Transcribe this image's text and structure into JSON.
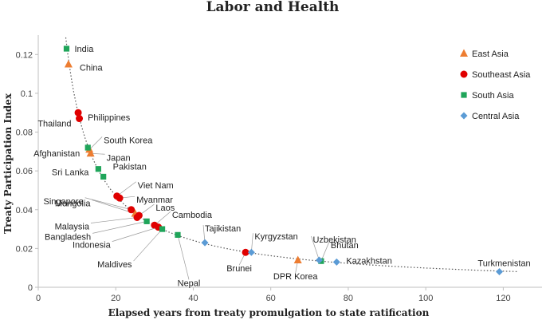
{
  "chart_data": {
    "type": "scatter",
    "title": "Labor and Health",
    "xlabel": "Elapsed years from treaty promulgation to state ratification",
    "ylabel": "Treaty Participation Index",
    "xlim": [
      0,
      130
    ],
    "ylim": [
      0,
      0.13
    ],
    "x_ticks": [
      0,
      20,
      40,
      60,
      80,
      100,
      120
    ],
    "y_ticks": [
      0,
      0.02,
      0.04,
      0.06,
      0.08,
      0.1,
      0.12
    ],
    "grid": false,
    "legend_position": "right",
    "trendline": "dotted",
    "series": [
      {
        "name": "East Asia",
        "marker": "triangle",
        "color": "#ED7D31",
        "points": [
          {
            "label": "China",
            "x": 7.8,
            "y": 0.115
          },
          {
            "label": "Japan",
            "x": 13.5,
            "y": 0.069
          },
          {
            "label": "South Korea",
            "x": 13.2,
            "y": 0.071
          },
          {
            "label": "Mongolia",
            "x": 25.0,
            "y": 0.038
          },
          {
            "label": "DPR Korea",
            "x": 67.0,
            "y": 0.014
          }
        ]
      },
      {
        "name": "Southeast Asia",
        "marker": "circle",
        "color": "#E00000",
        "points": [
          {
            "label": "Philippines",
            "x": 10.3,
            "y": 0.09
          },
          {
            "label": "Thailand",
            "x": 10.6,
            "y": 0.087
          },
          {
            "label": "Viet Nam",
            "x": 20.3,
            "y": 0.047
          },
          {
            "label": "Myanmar",
            "x": 21.0,
            "y": 0.046
          },
          {
            "label": "Singapore",
            "x": 24.0,
            "y": 0.04
          },
          {
            "label": "Laos",
            "x": 26.0,
            "y": 0.037
          },
          {
            "label": "Malaysia",
            "x": 25.5,
            "y": 0.036
          },
          {
            "label": "Cambodia",
            "x": 30.0,
            "y": 0.032
          },
          {
            "label": "Indonesia",
            "x": 31.0,
            "y": 0.031
          },
          {
            "label": "Brunei",
            "x": 53.5,
            "y": 0.018
          }
        ]
      },
      {
        "name": "South Asia",
        "marker": "square",
        "color": "#1FA55A",
        "points": [
          {
            "label": "India",
            "x": 7.3,
            "y": 0.123
          },
          {
            "label": "Afghanistan",
            "x": 12.8,
            "y": 0.072
          },
          {
            "label": "Sri Lanka",
            "x": 15.5,
            "y": 0.061
          },
          {
            "label": "Pakistan",
            "x": 16.8,
            "y": 0.057
          },
          {
            "label": "Bangladesh",
            "x": 28.0,
            "y": 0.034
          },
          {
            "label": "Maldives",
            "x": 32.0,
            "y": 0.03
          },
          {
            "label": "Nepal",
            "x": 36.0,
            "y": 0.027
          },
          {
            "label": "Bhutan",
            "x": 73.0,
            "y": 0.0135
          }
        ]
      },
      {
        "name": "Central Asia",
        "marker": "diamond",
        "color": "#5B9BD5",
        "points": [
          {
            "label": "Tajikistan",
            "x": 43.0,
            "y": 0.023
          },
          {
            "label": "Kyrgyzstan",
            "x": 55.0,
            "y": 0.018
          },
          {
            "label": "Uzbekistan",
            "x": 72.5,
            "y": 0.014
          },
          {
            "label": "Kazakhstan",
            "x": 77.0,
            "y": 0.013
          },
          {
            "label": "Turkmenistan",
            "x": 119.0,
            "y": 0.008
          }
        ]
      }
    ]
  }
}
